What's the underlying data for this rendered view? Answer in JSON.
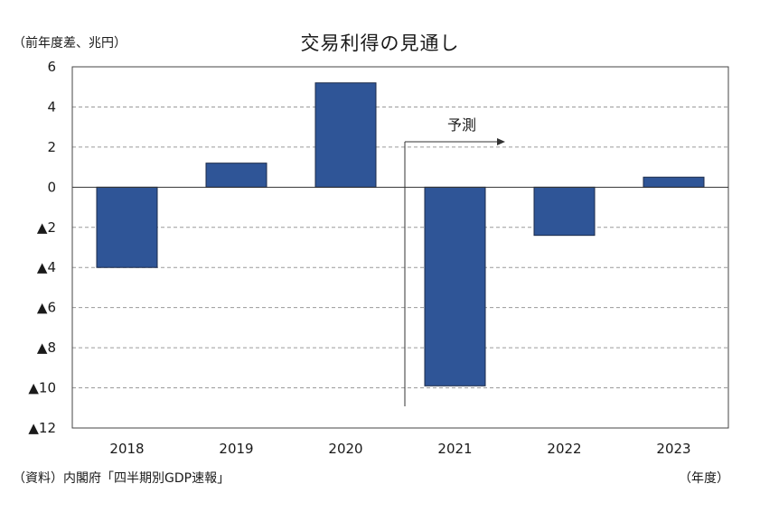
{
  "chart_data": {
    "type": "bar",
    "title": "交易利得の見通し",
    "unit_label": "（前年度差、兆円）",
    "xunit_label": "（年度）",
    "source": "（資料）内閣府「四半期別GDP速報」",
    "categories": [
      "2018",
      "2019",
      "2020",
      "2021",
      "2022",
      "2023"
    ],
    "values": [
      -4.0,
      1.2,
      5.2,
      -9.9,
      -2.4,
      0.5
    ],
    "ylim": [
      -12,
      6
    ],
    "yticks": [
      6,
      4,
      2,
      0,
      -2,
      -4,
      -6,
      -8,
      -10,
      -12
    ],
    "ytick_labels": [
      "6",
      "4",
      "2",
      "0",
      "▲2",
      "▲4",
      "▲6",
      "▲8",
      "▲10",
      "▲12"
    ],
    "forecast_label": "予測",
    "forecast_start": "2021",
    "grid": true,
    "bar_color": "#2f5597",
    "bar_edge_color": "#1b2a48"
  }
}
